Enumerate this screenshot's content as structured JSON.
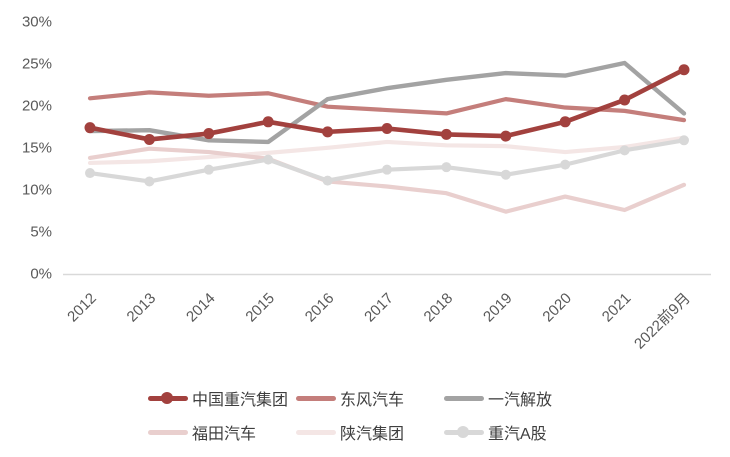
{
  "chart_data": {
    "type": "line",
    "title": "",
    "xlabel": "",
    "ylabel": "",
    "ylim": [
      0,
      30
    ],
    "y_tick_step": 5,
    "grid": "baseline-only",
    "legend_position": "bottom",
    "y_ticks": [
      {
        "v": 30,
        "label": "30%"
      },
      {
        "v": 25,
        "label": "25%"
      },
      {
        "v": 20,
        "label": "20%"
      },
      {
        "v": 15,
        "label": "15%"
      },
      {
        "v": 10,
        "label": "10%"
      },
      {
        "v": 5,
        "label": "5%"
      },
      {
        "v": 0,
        "label": "0%"
      }
    ],
    "categories": [
      "2012",
      "2013",
      "2014",
      "2015",
      "2016",
      "2017",
      "2018",
      "2019",
      "2020",
      "2021",
      "2022前9月"
    ],
    "series": [
      {
        "key": "zhongguo-zhongqi",
        "name": "中国重汽集团",
        "color": "#A2413E",
        "marker": true,
        "marker_r": 5.5,
        "width": 4.6,
        "values": [
          17.3,
          15.9,
          16.6,
          18.0,
          16.8,
          17.2,
          16.5,
          16.3,
          18.0,
          20.6,
          24.2
        ]
      },
      {
        "key": "dongfeng",
        "name": "东风汽车",
        "color": "#C47E7B",
        "marker": false,
        "marker_r": 0,
        "width": 4.2,
        "values": [
          20.8,
          21.5,
          21.1,
          21.4,
          19.8,
          19.4,
          19.0,
          20.7,
          19.7,
          19.3,
          18.2
        ]
      },
      {
        "key": "yiqi-jiefang",
        "name": "一汽解放",
        "color": "#A3A3A3",
        "marker": false,
        "marker_r": 0,
        "width": 4.4,
        "values": [
          16.9,
          17.0,
          15.8,
          15.6,
          20.7,
          22.0,
          23.0,
          23.8,
          23.5,
          25.0,
          19.0
        ]
      },
      {
        "key": "futian",
        "name": "福田汽车",
        "color": "#E9CFCE",
        "marker": false,
        "marker_r": 0,
        "width": 4.2,
        "values": [
          13.7,
          14.8,
          14.4,
          13.6,
          10.9,
          10.3,
          9.5,
          7.3,
          9.1,
          7.5,
          10.5
        ]
      },
      {
        "key": "shanqi",
        "name": "陕汽集团",
        "color": "#F4E6E5",
        "marker": false,
        "marker_r": 0,
        "width": 4.2,
        "values": [
          13.1,
          13.3,
          13.8,
          14.3,
          14.9,
          15.6,
          15.2,
          15.1,
          14.4,
          15.0,
          16.1
        ]
      },
      {
        "key": "zhongqi-a",
        "name": "重汽A股",
        "color": "#D8D8D8",
        "marker": true,
        "marker_r": 5,
        "width": 4.2,
        "values": [
          11.9,
          10.9,
          12.3,
          13.5,
          11.0,
          12.3,
          12.6,
          11.7,
          12.9,
          14.6,
          15.8
        ]
      }
    ],
    "z_order": [
      4,
      3,
      5,
      1,
      2,
      0
    ],
    "colors": {
      "axis_text": "#595959",
      "baseline": "#D9D9D9",
      "legend_text": "#3f3f3f",
      "background": "#ffffff"
    }
  }
}
